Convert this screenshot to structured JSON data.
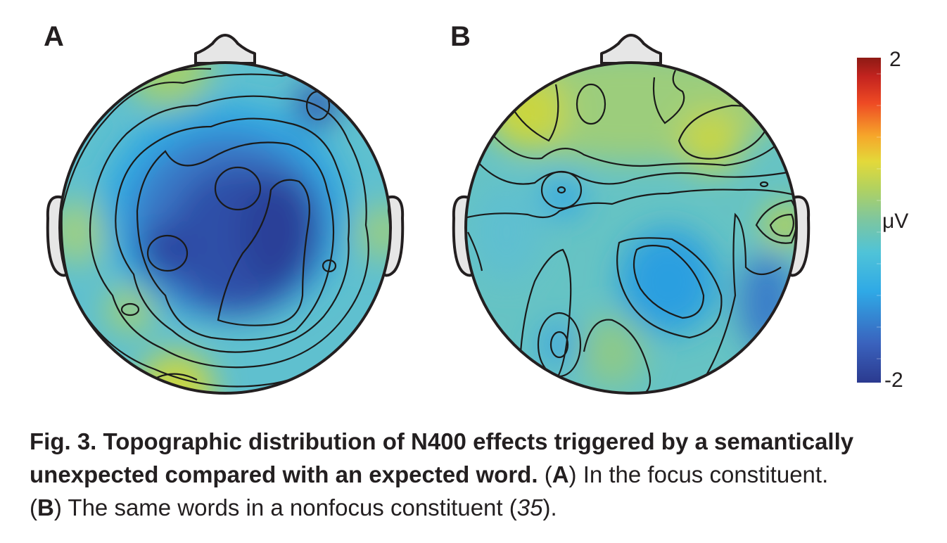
{
  "panels": [
    {
      "letter": "A"
    },
    {
      "letter": "B"
    }
  ],
  "colorbar": {
    "max_label": "2",
    "unit_label": "μV",
    "min_label": "-2",
    "range": [
      -2,
      2
    ],
    "colors": [
      "#2b3a8f",
      "#3a6fc4",
      "#2fa9e6",
      "#4fc3d8",
      "#7dc6a0",
      "#a8cf6a",
      "#e3d93a",
      "#f6a62a",
      "#ee4a24",
      "#c4241f",
      "#8e1a14"
    ]
  },
  "caption": {
    "fig_label": "Fig. 3.",
    "title_line1": "Topographic distribution of N400 effects triggered by a semantically",
    "title_line2": "unexpected compared with an expected word.",
    "a_open": "(",
    "a_letter": "A",
    "a_text": ") In the focus constituent.",
    "b_open": "(",
    "b_letter": "B",
    "b_text": ") The same words in a nonfocus constituent (",
    "b_ref": "35",
    "b_close": ")."
  }
}
